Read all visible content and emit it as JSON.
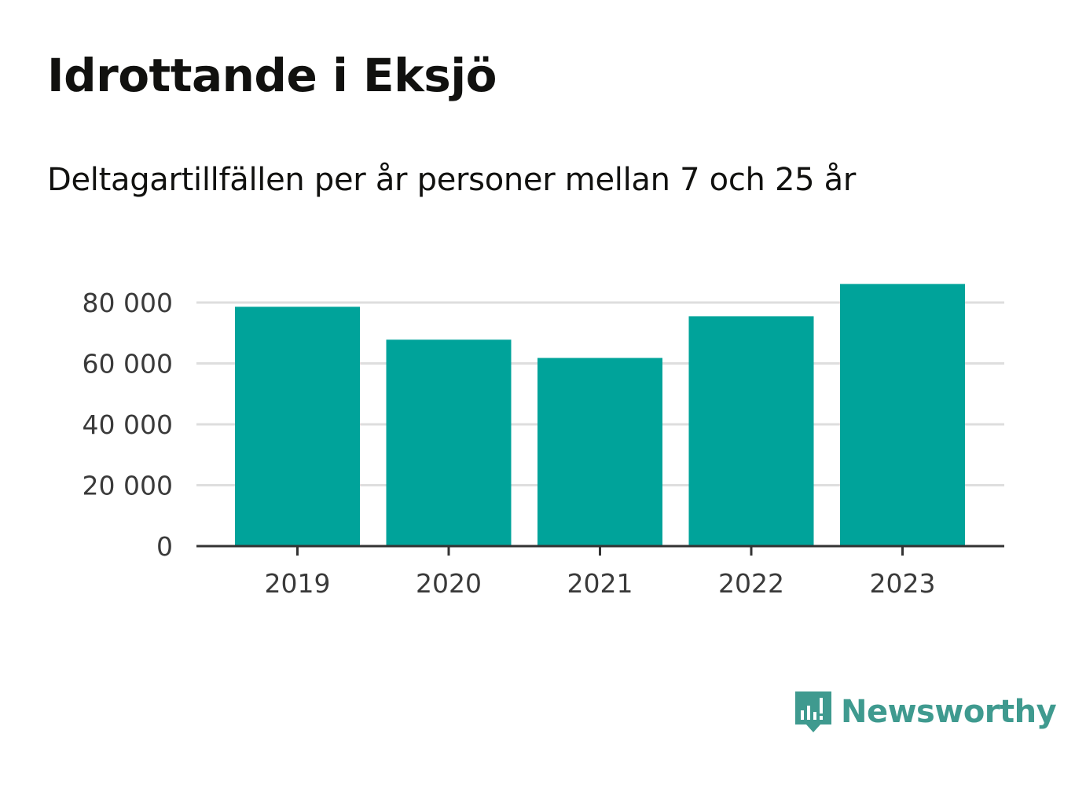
{
  "header": {
    "title": "Idrottande i Eksjö",
    "subtitle": "Deltagartillfällen per år personer mellan 7 och 25 år"
  },
  "brand": {
    "name": "Newsworthy",
    "logo_icon": "newsworthy-logo-icon",
    "color": "#3f9a8f"
  },
  "chart_data": {
    "type": "bar",
    "categories": [
      "2019",
      "2020",
      "2021",
      "2022",
      "2023"
    ],
    "values": [
      78600,
      67800,
      61800,
      75500,
      86100
    ],
    "title": "Idrottande i Eksjö",
    "subtitle": "Deltagartillfällen per år personer mellan 7 och 25 år",
    "xlabel": "",
    "ylabel": "",
    "ylim": [
      0,
      86100
    ],
    "yticks": [
      0,
      20000,
      40000,
      60000,
      80000
    ],
    "ytick_labels": [
      "0",
      "20 000",
      "40 000",
      "60 000",
      "80 000"
    ],
    "grid": true,
    "legend": "none",
    "colors": {
      "bar": "#00a39a",
      "grid": "#dedede",
      "axis": "#333333"
    }
  }
}
